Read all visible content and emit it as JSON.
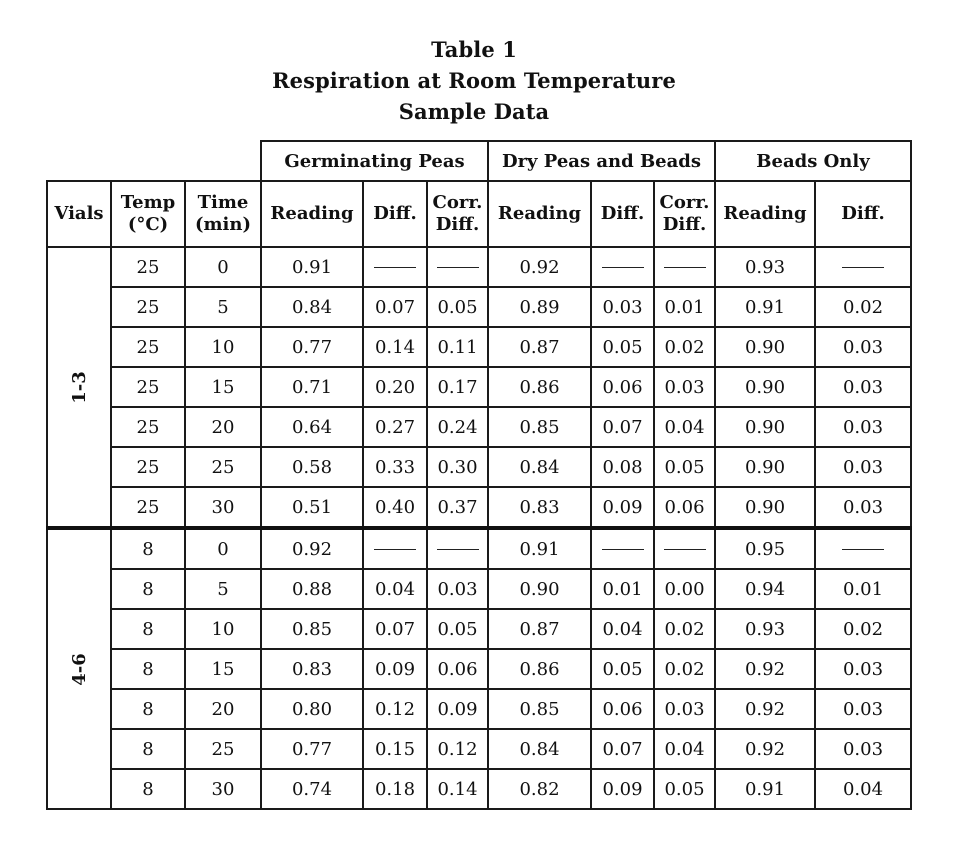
{
  "title": {
    "line1": "Table 1",
    "line2": "Respiration at Room Temperature",
    "line3": "Sample Data"
  },
  "groups": {
    "germinating": "Germinating Peas",
    "dry": "Dry Peas and Beads",
    "beads": "Beads Only"
  },
  "columns": {
    "vials": "Vials",
    "temp": [
      "Temp",
      "(°C)"
    ],
    "time": [
      "Time",
      "(min)"
    ],
    "reading": "Reading",
    "diff": "Diff.",
    "corr_diff": [
      "Corr.",
      "Diff."
    ]
  },
  "dash": "——",
  "vial_groups": [
    {
      "label": "1-3",
      "rows": [
        {
          "temp": "25",
          "time": "0",
          "gp_reading": "0.91",
          "gp_diff": "——",
          "gp_corr": "——",
          "dp_reading": "0.92",
          "dp_diff": "——",
          "dp_corr": "——",
          "bo_reading": "0.93",
          "bo_diff": "——"
        },
        {
          "temp": "25",
          "time": "5",
          "gp_reading": "0.84",
          "gp_diff": "0.07",
          "gp_corr": "0.05",
          "dp_reading": "0.89",
          "dp_diff": "0.03",
          "dp_corr": "0.01",
          "bo_reading": "0.91",
          "bo_diff": "0.02"
        },
        {
          "temp": "25",
          "time": "10",
          "gp_reading": "0.77",
          "gp_diff": "0.14",
          "gp_corr": "0.11",
          "dp_reading": "0.87",
          "dp_diff": "0.05",
          "dp_corr": "0.02",
          "bo_reading": "0.90",
          "bo_diff": "0.03"
        },
        {
          "temp": "25",
          "time": "15",
          "gp_reading": "0.71",
          "gp_diff": "0.20",
          "gp_corr": "0.17",
          "dp_reading": "0.86",
          "dp_diff": "0.06",
          "dp_corr": "0.03",
          "bo_reading": "0.90",
          "bo_diff": "0.03"
        },
        {
          "temp": "25",
          "time": "20",
          "gp_reading": "0.64",
          "gp_diff": "0.27",
          "gp_corr": "0.24",
          "dp_reading": "0.85",
          "dp_diff": "0.07",
          "dp_corr": "0.04",
          "bo_reading": "0.90",
          "bo_diff": "0.03"
        },
        {
          "temp": "25",
          "time": "25",
          "gp_reading": "0.58",
          "gp_diff": "0.33",
          "gp_corr": "0.30",
          "dp_reading": "0.84",
          "dp_diff": "0.08",
          "dp_corr": "0.05",
          "bo_reading": "0.90",
          "bo_diff": "0.03"
        },
        {
          "temp": "25",
          "time": "30",
          "gp_reading": "0.51",
          "gp_diff": "0.40",
          "gp_corr": "0.37",
          "dp_reading": "0.83",
          "dp_diff": "0.09",
          "dp_corr": "0.06",
          "bo_reading": "0.90",
          "bo_diff": "0.03"
        }
      ]
    },
    {
      "label": "4-6",
      "rows": [
        {
          "temp": "8",
          "time": "0",
          "gp_reading": "0.92",
          "gp_diff": "——",
          "gp_corr": "——",
          "dp_reading": "0.91",
          "dp_diff": "——",
          "dp_corr": "——",
          "bo_reading": "0.95",
          "bo_diff": "——"
        },
        {
          "temp": "8",
          "time": "5",
          "gp_reading": "0.88",
          "gp_diff": "0.04",
          "gp_corr": "0.03",
          "dp_reading": "0.90",
          "dp_diff": "0.01",
          "dp_corr": "0.00",
          "bo_reading": "0.94",
          "bo_diff": "0.01"
        },
        {
          "temp": "8",
          "time": "10",
          "gp_reading": "0.85",
          "gp_diff": "0.07",
          "gp_corr": "0.05",
          "dp_reading": "0.87",
          "dp_diff": "0.04",
          "dp_corr": "0.02",
          "bo_reading": "0.93",
          "bo_diff": "0.02"
        },
        {
          "temp": "8",
          "time": "15",
          "gp_reading": "0.83",
          "gp_diff": "0.09",
          "gp_corr": "0.06",
          "dp_reading": "0.86",
          "dp_diff": "0.05",
          "dp_corr": "0.02",
          "bo_reading": "0.92",
          "bo_diff": "0.03"
        },
        {
          "temp": "8",
          "time": "20",
          "gp_reading": "0.80",
          "gp_diff": "0.12",
          "gp_corr": "0.09",
          "dp_reading": "0.85",
          "dp_diff": "0.06",
          "dp_corr": "0.03",
          "bo_reading": "0.92",
          "bo_diff": "0.03"
        },
        {
          "temp": "8",
          "time": "25",
          "gp_reading": "0.77",
          "gp_diff": "0.15",
          "gp_corr": "0.12",
          "dp_reading": "0.84",
          "dp_diff": "0.07",
          "dp_corr": "0.04",
          "bo_reading": "0.92",
          "bo_diff": "0.03"
        },
        {
          "temp": "8",
          "time": "30",
          "gp_reading": "0.74",
          "gp_diff": "0.18",
          "gp_corr": "0.14",
          "dp_reading": "0.82",
          "dp_diff": "0.09",
          "dp_corr": "0.05",
          "bo_reading": "0.91",
          "bo_diff": "0.04"
        }
      ]
    }
  ]
}
